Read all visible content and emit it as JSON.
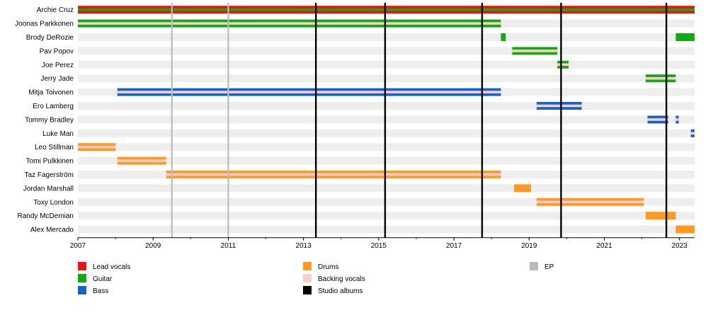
{
  "chart_data": {
    "type": "timeline",
    "title": "",
    "xlabel": "",
    "ylabel": "",
    "xlim": [
      2007.0,
      2023.4
    ],
    "x_ticks": [
      "2007",
      "2009",
      "2011",
      "2013",
      "2015",
      "2017",
      "2019",
      "2021",
      "2023"
    ],
    "grid": "alternating row bands",
    "legend_position": "bottom",
    "roles": [
      {
        "id": "lead",
        "label": "Lead vocals",
        "color": "#ee1111"
      },
      {
        "id": "guitar",
        "label": "Guitar",
        "color": "#11aa11"
      },
      {
        "id": "bass",
        "label": "Bass",
        "color": "#1166cc"
      },
      {
        "id": "drums",
        "label": "Drums",
        "color": "#ff9922"
      },
      {
        "id": "backing",
        "label": "Backing vocals",
        "color": "#ffcccc"
      },
      {
        "id": "albums",
        "label": "Studio albums",
        "color": "#000000"
      },
      {
        "id": "ep",
        "label": "EP",
        "color": "#bbbbbb"
      }
    ],
    "members": [
      {
        "name": "Archie Cruz",
        "periods": [
          {
            "start": 2007.0,
            "end": 2023.4,
            "roles": [
              "lead",
              "guitar"
            ]
          }
        ]
      },
      {
        "name": "Joonas Parkkonen",
        "periods": [
          {
            "start": 2007.0,
            "end": 2018.25,
            "roles": [
              "guitar",
              "backing"
            ]
          }
        ]
      },
      {
        "name": "Brody DeRozie",
        "periods": [
          {
            "start": 2018.25,
            "end": 2018.38,
            "roles": [
              "guitar"
            ]
          },
          {
            "start": 2022.9,
            "end": 2023.4,
            "roles": [
              "guitar"
            ]
          }
        ]
      },
      {
        "name": "Pav Popov",
        "periods": [
          {
            "start": 2018.55,
            "end": 2019.75,
            "roles": [
              "guitar",
              "backing"
            ]
          }
        ]
      },
      {
        "name": "Joe Perez",
        "periods": [
          {
            "start": 2019.75,
            "end": 2020.05,
            "roles": [
              "guitar",
              "backing"
            ]
          }
        ]
      },
      {
        "name": "Jerry Jade",
        "periods": [
          {
            "start": 2022.1,
            "end": 2022.9,
            "roles": [
              "guitar",
              "backing"
            ]
          }
        ]
      },
      {
        "name": "Mitja Toivonen",
        "periods": [
          {
            "start": 2008.05,
            "end": 2018.25,
            "roles": [
              "bass",
              "backing"
            ]
          }
        ]
      },
      {
        "name": "Ero Lamberg",
        "periods": [
          {
            "start": 2019.2,
            "end": 2020.4,
            "roles": [
              "bass",
              "backing"
            ]
          }
        ]
      },
      {
        "name": "Tommy Bradley",
        "periods": [
          {
            "start": 2022.15,
            "end": 2022.7,
            "roles": [
              "bass",
              "backing"
            ]
          },
          {
            "start": 2022.9,
            "end": 2022.98,
            "roles": [
              "bass",
              "backing"
            ]
          }
        ]
      },
      {
        "name": "Luke Man",
        "periods": [
          {
            "start": 2023.3,
            "end": 2023.4,
            "roles": [
              "bass",
              "backing"
            ]
          }
        ]
      },
      {
        "name": "Leo Stillman",
        "periods": [
          {
            "start": 2007.0,
            "end": 2008.0,
            "roles": [
              "drums",
              "backing"
            ]
          }
        ]
      },
      {
        "name": "Tomi Pulkkinen",
        "periods": [
          {
            "start": 2008.05,
            "end": 2009.35,
            "roles": [
              "drums",
              "backing"
            ]
          }
        ]
      },
      {
        "name": "Taz Fagerström",
        "periods": [
          {
            "start": 2009.35,
            "end": 2018.25,
            "roles": [
              "drums",
              "backing"
            ]
          }
        ]
      },
      {
        "name": "Jordan Marshall",
        "periods": [
          {
            "start": 2018.6,
            "end": 2019.05,
            "roles": [
              "drums"
            ]
          }
        ]
      },
      {
        "name": "Toxy London",
        "periods": [
          {
            "start": 2019.2,
            "end": 2022.05,
            "roles": [
              "drums",
              "backing"
            ]
          }
        ]
      },
      {
        "name": "Randy McDemian",
        "periods": [
          {
            "start": 2022.1,
            "end": 2022.9,
            "roles": [
              "drums"
            ]
          }
        ]
      },
      {
        "name": "Alex Mercado",
        "periods": [
          {
            "start": 2022.9,
            "end": 2023.4,
            "roles": [
              "drums"
            ]
          }
        ]
      }
    ],
    "events": [
      {
        "type": "ep",
        "date": 2009.5
      },
      {
        "type": "ep",
        "date": 2011.0
      },
      {
        "type": "albums",
        "date": 2013.33
      },
      {
        "type": "albums",
        "date": 2015.17
      },
      {
        "type": "albums",
        "date": 2017.75
      },
      {
        "type": "albums",
        "date": 2019.85
      },
      {
        "type": "albums",
        "date": 2022.65
      }
    ],
    "legend_columns": [
      [
        "lead",
        "guitar",
        "bass"
      ],
      [
        "drums",
        "backing",
        "albums"
      ],
      [
        "ep"
      ]
    ]
  }
}
